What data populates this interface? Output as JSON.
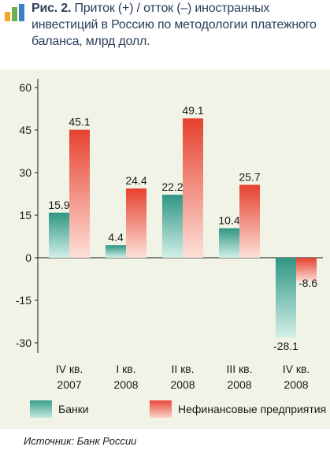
{
  "figure": {
    "caption_label": "Рис. 2.",
    "caption_text": "Приток (+) / отток (–) иностранных инвестиций в Россию по методологии платежного баланса, млрд долл.",
    "source": "Источник: Банк России"
  },
  "chart_data": {
    "type": "bar",
    "categories": [
      [
        "IV кв.",
        "2007"
      ],
      [
        "I кв.",
        "2008"
      ],
      [
        "II кв.",
        "2008"
      ],
      [
        "III кв.",
        "2008"
      ],
      [
        "IV кв.",
        "2008"
      ]
    ],
    "series": [
      {
        "name": "Банки",
        "values": [
          15.9,
          4.4,
          22.2,
          10.4,
          -28.1
        ],
        "labels": [
          "15.9",
          "4.4",
          "22.2",
          "10.4",
          "-28.1"
        ],
        "color": "#3a9e8c"
      },
      {
        "name": "Нефинансовые предприятия",
        "values": [
          45.1,
          24.4,
          49.1,
          25.7,
          -8.6
        ],
        "labels": [
          "45.1",
          "24.4",
          "49.1",
          "25.7",
          "-8.6"
        ],
        "color": "#e84a3a"
      }
    ],
    "yticks": [
      "60",
      "45",
      "30",
      "15",
      "0",
      "-15",
      "-30"
    ],
    "ylim": [
      -33,
      63
    ],
    "grid": false,
    "legend": "bottom"
  }
}
